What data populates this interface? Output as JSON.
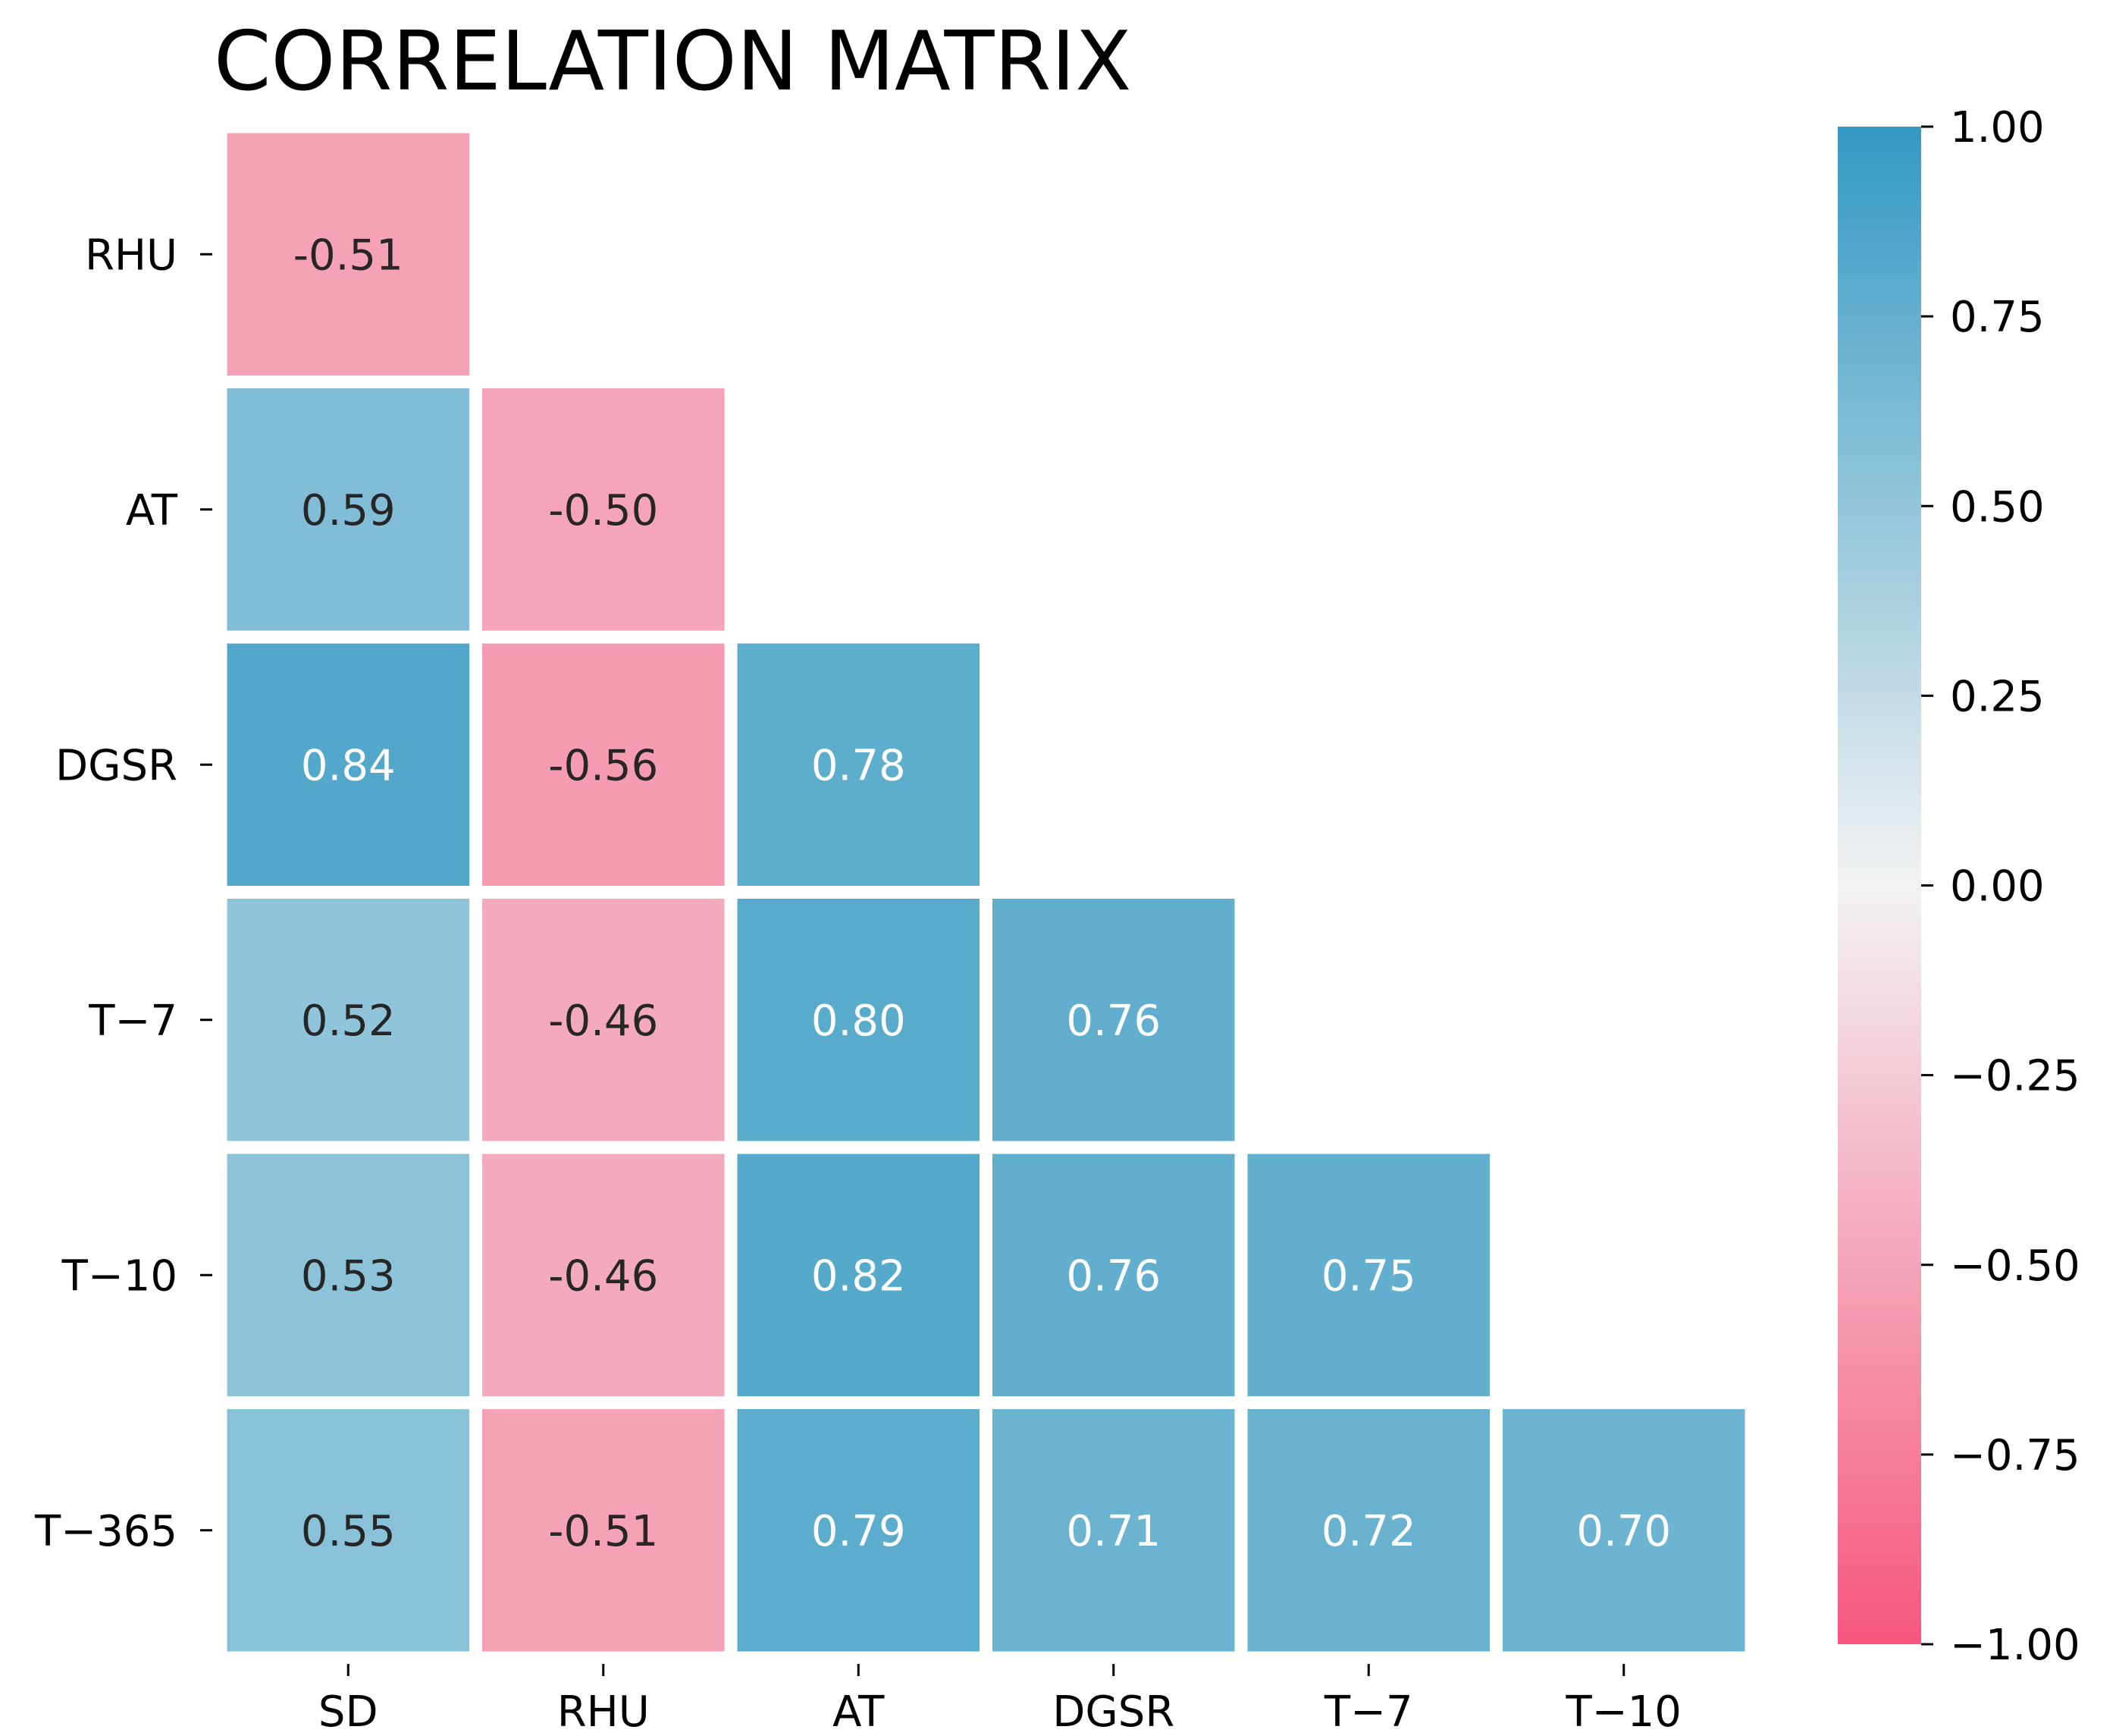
{
  "chart_data": {
    "type": "heatmap",
    "title": "CORRELATION MATRIX",
    "rows": [
      "RHU",
      "AT",
      "DGSR",
      "T−7",
      "T−10",
      "T−365"
    ],
    "columns": [
      "SD",
      "RHU",
      "AT",
      "DGSR",
      "T−7",
      "T−10"
    ],
    "values": [
      [
        -0.51
      ],
      [
        0.59,
        -0.5
      ],
      [
        0.84,
        -0.56,
        0.78
      ],
      [
        0.52,
        -0.46,
        0.8,
        0.76
      ],
      [
        0.53,
        -0.46,
        0.82,
        0.76,
        0.75
      ],
      [
        0.55,
        -0.51,
        0.79,
        0.71,
        0.72,
        0.7
      ]
    ],
    "value_labels": [
      [
        "-0.51"
      ],
      [
        "0.59",
        "-0.50"
      ],
      [
        "0.84",
        "-0.56",
        "0.78"
      ],
      [
        "0.52",
        "-0.46",
        "0.80",
        "0.76"
      ],
      [
        "0.53",
        "-0.46",
        "0.82",
        "0.76",
        "0.75"
      ],
      [
        "0.55",
        "-0.51",
        "0.79",
        "0.71",
        "0.72",
        "0.70"
      ]
    ],
    "mask": "upper-triangle",
    "colorbar": {
      "min": -1.0,
      "max": 1.0,
      "ticks": [
        1.0,
        0.75,
        0.5,
        0.25,
        0.0,
        -0.25,
        -0.5,
        -0.75,
        -1.0
      ],
      "tick_labels": [
        "1.00",
        "0.75",
        "0.50",
        "0.25",
        "0.00",
        "−0.25",
        "−0.50",
        "−0.75",
        "−1.00"
      ],
      "low_color": "#f7567f",
      "mid_color": "#f2f2f2",
      "high_color": "#3399c3"
    },
    "annotation_dark_color": "#262626",
    "annotation_light_color": "#ffffff"
  }
}
